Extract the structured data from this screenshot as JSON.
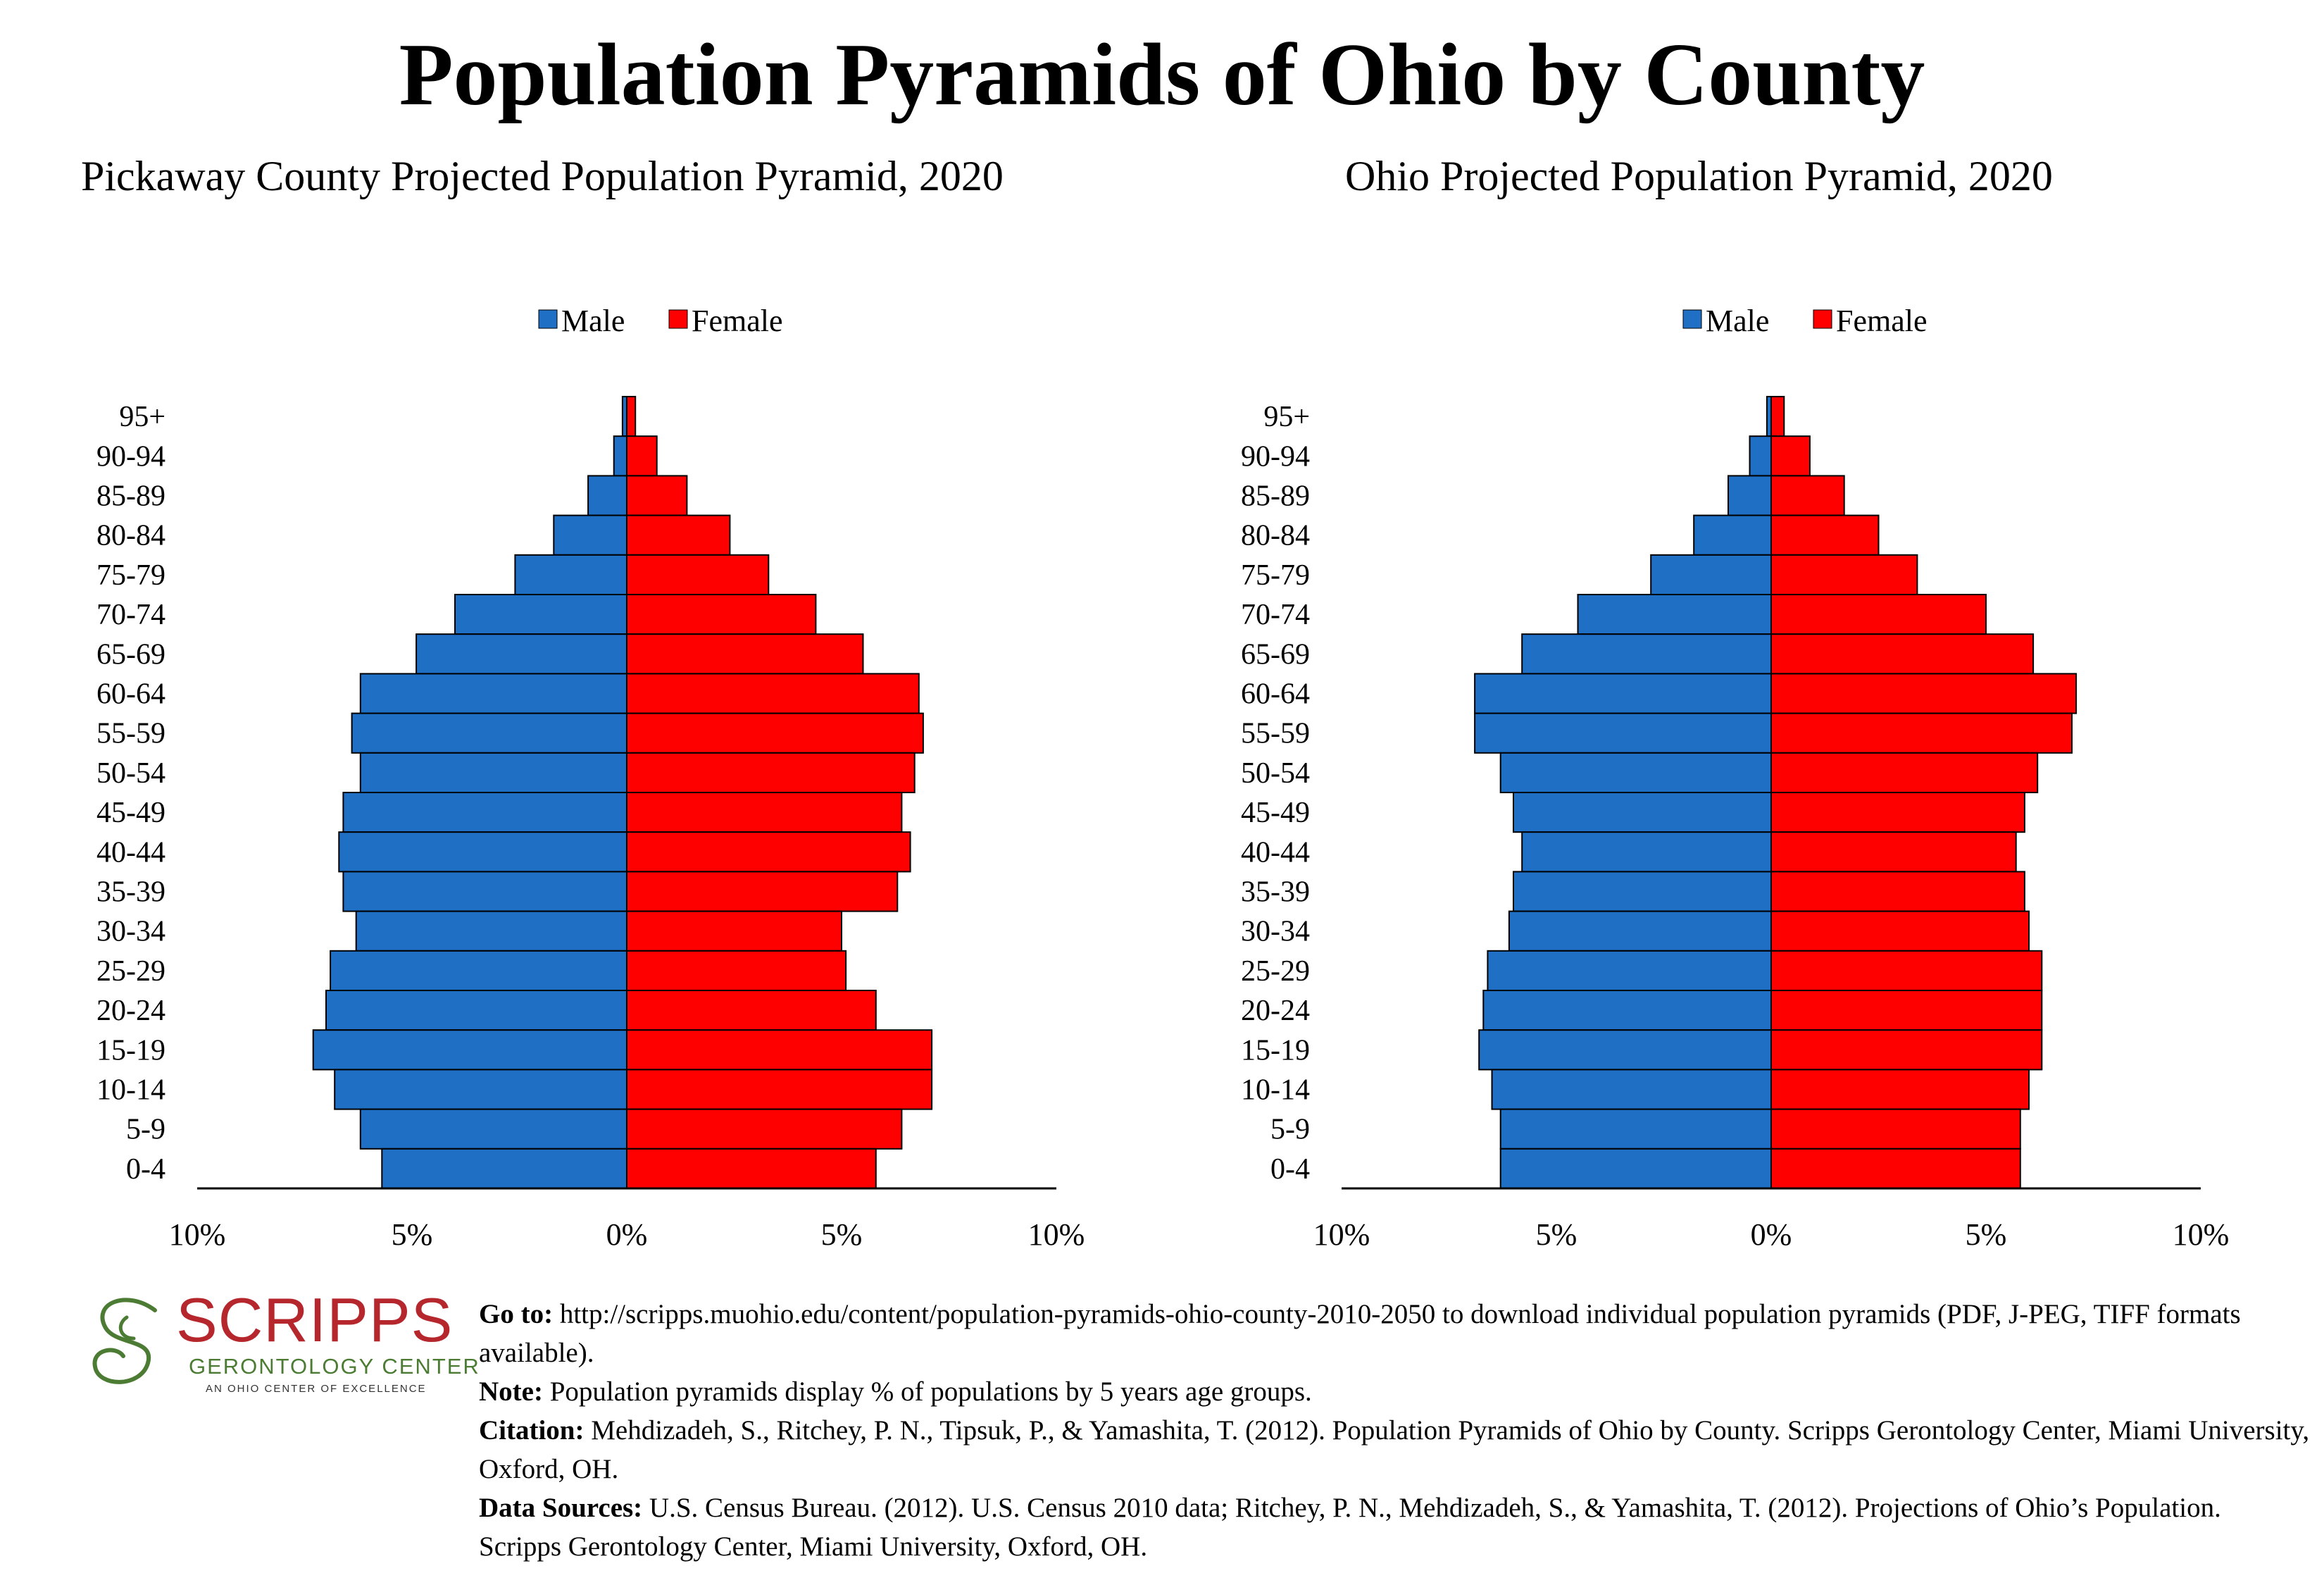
{
  "title": "Population Pyramids of Ohio by County",
  "colors": {
    "male": "#1f6fc5",
    "female": "#ff0000"
  },
  "chart_data": [
    {
      "type": "bar",
      "orientation": "horizontal-pyramid",
      "title": "Pickaway County Projected Population Pyramid, 2020",
      "legend": [
        "Male",
        "Female"
      ],
      "legend_position": "top-center",
      "categories": [
        "95+",
        "90-94",
        "85-89",
        "80-84",
        "75-79",
        "70-74",
        "65-69",
        "60-64",
        "55-59",
        "50-54",
        "45-49",
        "40-44",
        "35-39",
        "30-34",
        "25-29",
        "20-24",
        "15-19",
        "10-14",
        "5-9",
        "0-4"
      ],
      "series": [
        {
          "name": "Male",
          "values": [
            0.1,
            0.3,
            0.9,
            1.7,
            2.6,
            4.0,
            4.9,
            6.2,
            6.4,
            6.2,
            6.6,
            6.7,
            6.6,
            6.3,
            6.9,
            7.0,
            7.3,
            6.8,
            6.2,
            5.7
          ]
        },
        {
          "name": "Female",
          "values": [
            0.2,
            0.7,
            1.4,
            2.4,
            3.3,
            4.4,
            5.5,
            6.8,
            6.9,
            6.7,
            6.4,
            6.6,
            6.3,
            5.0,
            5.1,
            5.8,
            7.1,
            7.1,
            6.4,
            5.8
          ]
        }
      ],
      "xlim": [
        -10,
        10
      ],
      "xticks": [
        "10%",
        "5%",
        "0%",
        "5%",
        "10%"
      ],
      "grid": false
    },
    {
      "type": "bar",
      "orientation": "horizontal-pyramid",
      "title": "Ohio Projected Population Pyramid, 2020",
      "legend": [
        "Male",
        "Female"
      ],
      "legend_position": "top-center",
      "categories": [
        "95+",
        "90-94",
        "85-89",
        "80-84",
        "75-79",
        "70-74",
        "65-69",
        "60-64",
        "55-59",
        "50-54",
        "45-49",
        "40-44",
        "35-39",
        "30-34",
        "25-29",
        "20-24",
        "15-19",
        "10-14",
        "5-9",
        "0-4"
      ],
      "series": [
        {
          "name": "Male",
          "values": [
            0.1,
            0.5,
            1.0,
            1.8,
            2.8,
            4.5,
            5.8,
            6.9,
            6.9,
            6.3,
            6.0,
            5.8,
            6.0,
            6.1,
            6.6,
            6.7,
            6.8,
            6.5,
            6.3,
            6.3
          ]
        },
        {
          "name": "Female",
          "values": [
            0.3,
            0.9,
            1.7,
            2.5,
            3.4,
            5.0,
            6.1,
            7.1,
            7.0,
            6.2,
            5.9,
            5.7,
            5.9,
            6.0,
            6.3,
            6.3,
            6.3,
            6.0,
            5.8,
            5.8
          ]
        }
      ],
      "xlim": [
        -10,
        10
      ],
      "xticks": [
        "10%",
        "5%",
        "0%",
        "5%",
        "10%"
      ],
      "grid": false
    }
  ],
  "logo": {
    "name": "SCRIPPS",
    "subtitle": "GERONTOLOGY CENTER",
    "tagline": "AN OHIO CENTER OF EXCELLENCE"
  },
  "footer": {
    "goto_label": "Go to:",
    "goto_text": " http://scripps.muohio.edu/content/population-pyramids-ohio-county-2010-2050 to download individual population pyramids (PDF, J-PEG, TIFF formats available).",
    "note_label": "Note:",
    "note_text": " Population pyramids display % of populations by 5 years age groups.",
    "citation_label": "Citation:",
    "citation_text": " Mehdizadeh, S., Ritchey, P. N., Tipsuk, P., & Yamashita, T. (2012). Population Pyramids of Ohio by County. Scripps Gerontology Center, Miami University, Oxford, OH.",
    "sources_label": "Data Sources:",
    "sources_text": " U.S. Census Bureau. (2012). U.S. Census 2010 data; Ritchey, P. N., Mehdizadeh, S., & Yamashita, T. (2012). Projections of Ohio’s Population. Scripps Gerontology Center, Miami University, Oxford, OH."
  }
}
